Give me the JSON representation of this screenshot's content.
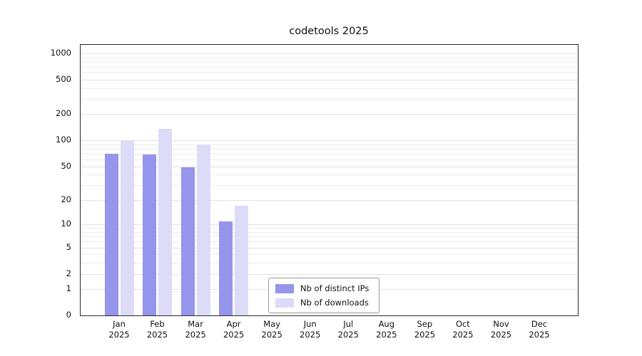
{
  "chart_data": {
    "type": "bar",
    "title": "codetools 2025",
    "categories": [
      "Jan",
      "Feb",
      "Mar",
      "Apr",
      "May",
      "Jun",
      "Jul",
      "Aug",
      "Sep",
      "Oct",
      "Nov",
      "Dec"
    ],
    "x_axis": {
      "year": "2025"
    },
    "y_axis": {
      "scale": "log1p",
      "max": 1250,
      "major_ticks": [
        0,
        1,
        2,
        5,
        10,
        20,
        50,
        100,
        200,
        500,
        1000
      ]
    },
    "series": [
      {
        "name": "Nb of distinct IPs",
        "color": "#9595ec",
        "values": [
          70,
          68,
          49,
          11,
          0,
          0,
          0,
          0,
          0,
          0,
          0,
          0
        ]
      },
      {
        "name": "Nb of downloads",
        "color": "#dcdcf8",
        "values": [
          100,
          135,
          90,
          17,
          0,
          0,
          0,
          0,
          0,
          0,
          0,
          0
        ]
      }
    ],
    "legend": {
      "position": "inside-bottom-center"
    },
    "grid": "horizontal-log-minor"
  }
}
